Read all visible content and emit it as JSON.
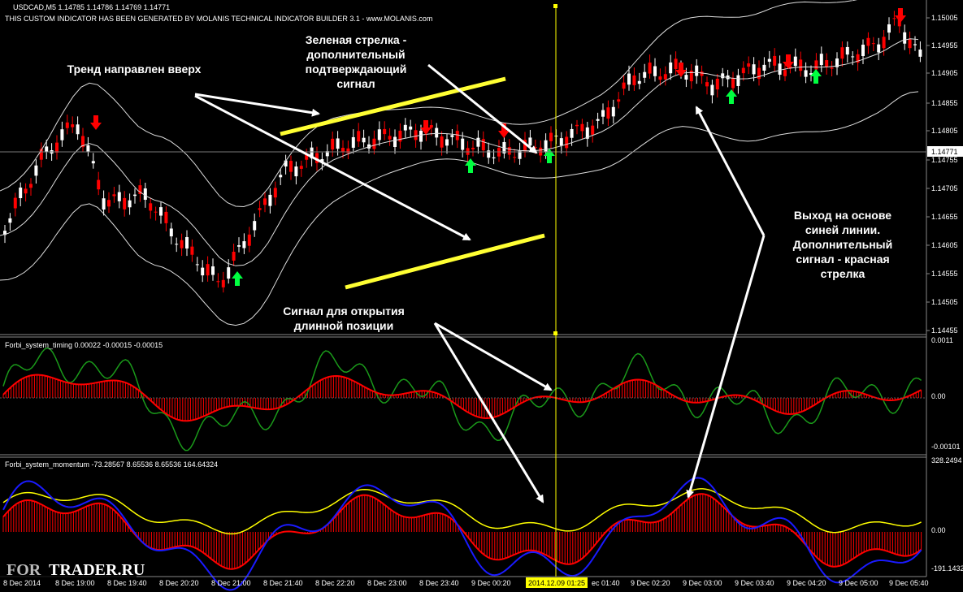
{
  "header": {
    "symbol": "USDCAD,M5  1.14785 1.14786 1.14769 1.14771",
    "builder": "THIS CUSTOM INDICATOR HAS BEEN GENERATED BY MOLANIS TECHNICAL INDICATOR BUILDER 3.1 - www.MOLANIS.com"
  },
  "price_axis": [
    "1.15005",
    "1.14955",
    "1.14905",
    "1.14855",
    "1.14805",
    "1.14755",
    "1.14705",
    "1.14655",
    "1.14605",
    "1.14555",
    "1.14505",
    "1.14455"
  ],
  "current_price": "1.14771",
  "timing": {
    "label": "Forbi_system_timing 0.00022 -0.00015 -0.00015",
    "axis": [
      "0.0011",
      "0.00",
      "-0.00101"
    ]
  },
  "momentum": {
    "label": "Forbi_system_momentum -73.28567 8.65536 8.65536 164.64324",
    "axis": [
      "328.2494",
      "0.00",
      "-191.1432"
    ]
  },
  "time_axis": [
    "8 Dec 2014",
    "8 Dec 19:00",
    "8 Dec 19:40",
    "8 Dec 20:20",
    "8 Dec 21:00",
    "8 Dec 21:40",
    "8 Dec 22:20",
    "8 Dec 23:00",
    "8 Dec 23:40",
    "9 Dec 00:20",
    "ec 01:40",
    "9 Dec 02:20",
    "9 Dec 03:00",
    "9 Dec 03:40",
    "9 Dec 04:20",
    "9 Dec 05:00",
    "9 Dec 05:40"
  ],
  "cursor_time": "2014.12.09 01:25",
  "annotations": {
    "trend": [
      "Тренд направлен вверх"
    ],
    "green_arrow": [
      "Зеленая стрелка -",
      "дополнительный",
      "подтверждающий",
      "сигнал"
    ],
    "long_signal": [
      "Сигнал для открытия",
      "длинной позиции"
    ],
    "exit": [
      "Выход на основе",
      "синей линии.",
      "Дополнительный",
      "сигнал - красная",
      "стрелка"
    ]
  },
  "watermark": {
    "left": "FOR",
    "right": "TRADER.RU"
  }
}
